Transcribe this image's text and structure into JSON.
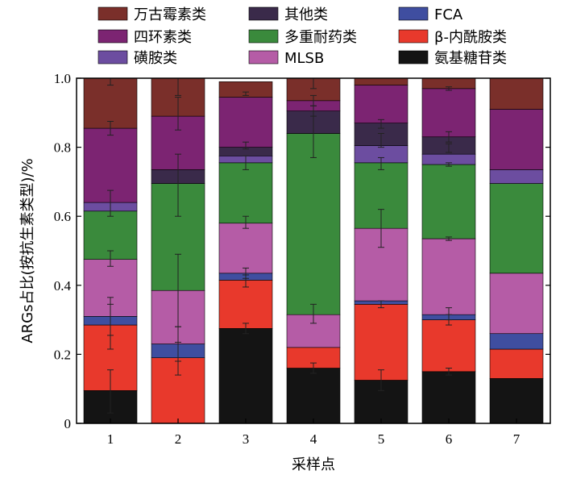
{
  "chart_data": {
    "type": "bar",
    "stacked": true,
    "categories": [
      "1",
      "2",
      "3",
      "4",
      "5",
      "6",
      "7"
    ],
    "xlabel": "采样点",
    "ylabel": "ARGs占比(按抗生素类型)/%",
    "ylim": [
      0,
      1.0
    ],
    "yticks": [
      "0",
      "0.2",
      "0.4",
      "0.6",
      "0.8",
      "1.0"
    ],
    "series": [
      {
        "name": "氨基糖苷类",
        "color": "#141414",
        "values": [
          0.095,
          0.0,
          0.275,
          0.16,
          0.125,
          0.15,
          0.13
        ]
      },
      {
        "name": "β-内酰胺类",
        "color": "#e8392c",
        "values": [
          0.19,
          0.19,
          0.14,
          0.06,
          0.22,
          0.15,
          0.085
        ]
      },
      {
        "name": "FCA",
        "color": "#3f4ea0",
        "values": [
          0.025,
          0.04,
          0.02,
          0.0,
          0.01,
          0.015,
          0.045
        ]
      },
      {
        "name": "MLSB",
        "color": "#b55ca6",
        "values": [
          0.165,
          0.155,
          0.145,
          0.095,
          0.21,
          0.22,
          0.175
        ]
      },
      {
        "name": "多重耐药类",
        "color": "#3a8a3c",
        "values": [
          0.14,
          0.31,
          0.175,
          0.525,
          0.19,
          0.215,
          0.26
        ]
      },
      {
        "name": "磺胺类",
        "color": "#6c4da0",
        "values": [
          0.025,
          0.0,
          0.02,
          0.0,
          0.05,
          0.03,
          0.04
        ]
      },
      {
        "name": "其他类",
        "color": "#3a2a4a",
        "values": [
          0.0,
          0.04,
          0.025,
          0.065,
          0.065,
          0.05,
          0.0
        ]
      },
      {
        "name": "四环素类",
        "color": "#7c2472",
        "values": [
          0.215,
          0.155,
          0.145,
          0.03,
          0.11,
          0.14,
          0.175
        ]
      },
      {
        "name": "万古霉素类",
        "color": "#7a2f2a",
        "values": [
          0.145,
          0.11,
          0.045,
          0.065,
          0.02,
          0.03,
          0.09
        ]
      }
    ],
    "legend": {
      "placement": "top",
      "columns": 3,
      "order": [
        "万古霉素类",
        "其他类",
        "FCA",
        "四环素类",
        "多重耐药类",
        "β-内酰胺类",
        "磺胺类",
        "MLSB",
        "氨基糖苷类"
      ]
    },
    "error_bars": [
      [
        {
          "y": 0.095,
          "lo": 0.03,
          "hi": 0.155
        },
        {
          "y": 0.285,
          "lo": 0.215,
          "hi": 0.345
        },
        {
          "y": 0.31,
          "lo": 0.255,
          "hi": 0.365
        },
        {
          "y": 0.475,
          "lo": 0.455,
          "hi": 0.5
        },
        {
          "y": 0.64,
          "lo": 0.6,
          "hi": 0.675
        },
        {
          "y": 0.855,
          "lo": 0.835,
          "hi": 0.875
        },
        {
          "y": 1.0,
          "lo": 0.98,
          "hi": 1.0
        }
      ],
      [
        {
          "y": 0.19,
          "lo": 0.14,
          "hi": 0.235
        },
        {
          "y": 0.23,
          "lo": 0.18,
          "hi": 0.28
        },
        {
          "y": 0.385,
          "lo": 0.28,
          "hi": 0.49
        },
        {
          "y": 0.69,
          "lo": 0.6,
          "hi": 0.78
        },
        {
          "y": 0.885,
          "lo": 0.85,
          "hi": 0.945
        },
        {
          "y": 1.0,
          "lo": 0.95,
          "hi": 1.0
        }
      ],
      [
        {
          "y": 0.275,
          "lo": 0.26,
          "hi": 0.29
        },
        {
          "y": 0.415,
          "lo": 0.395,
          "hi": 0.43
        },
        {
          "y": 0.435,
          "lo": 0.42,
          "hi": 0.45
        },
        {
          "y": 0.58,
          "lo": 0.565,
          "hi": 0.6
        },
        {
          "y": 0.755,
          "lo": 0.735,
          "hi": 0.775
        },
        {
          "y": 0.805,
          "lo": 0.795,
          "hi": 0.815
        },
        {
          "y": 0.955,
          "lo": 0.95,
          "hi": 0.96
        }
      ],
      [
        {
          "y": 0.16,
          "lo": 0.145,
          "hi": 0.175
        },
        {
          "y": 0.315,
          "lo": 0.29,
          "hi": 0.345
        },
        {
          "y": 0.84,
          "lo": 0.77,
          "hi": 0.905
        },
        {
          "y": 0.905,
          "lo": 0.89,
          "hi": 0.92
        },
        {
          "y": 0.935,
          "lo": 0.92,
          "hi": 0.95
        },
        {
          "y": 1.0,
          "lo": 0.97,
          "hi": 1.0
        }
      ],
      [
        {
          "y": 0.125,
          "lo": 0.095,
          "hi": 0.155
        },
        {
          "y": 0.345,
          "lo": 0.335,
          "hi": 0.355
        },
        {
          "y": 0.565,
          "lo": 0.51,
          "hi": 0.62
        },
        {
          "y": 0.755,
          "lo": 0.735,
          "hi": 0.77
        },
        {
          "y": 0.82,
          "lo": 0.8,
          "hi": 0.84
        },
        {
          "y": 0.87,
          "lo": 0.855,
          "hi": 0.88
        }
      ],
      [
        {
          "y": 0.15,
          "lo": 0.14,
          "hi": 0.16
        },
        {
          "y": 0.3,
          "lo": 0.285,
          "hi": 0.315
        },
        {
          "y": 0.315,
          "lo": 0.3,
          "hi": 0.335
        },
        {
          "y": 0.535,
          "lo": 0.53,
          "hi": 0.54
        },
        {
          "y": 0.75,
          "lo": 0.745,
          "hi": 0.755
        },
        {
          "y": 0.8,
          "lo": 0.785,
          "hi": 0.81
        },
        {
          "y": 0.83,
          "lo": 0.815,
          "hi": 0.845
        },
        {
          "y": 0.97,
          "lo": 0.965,
          "hi": 0.975
        }
      ],
      []
    ]
  }
}
